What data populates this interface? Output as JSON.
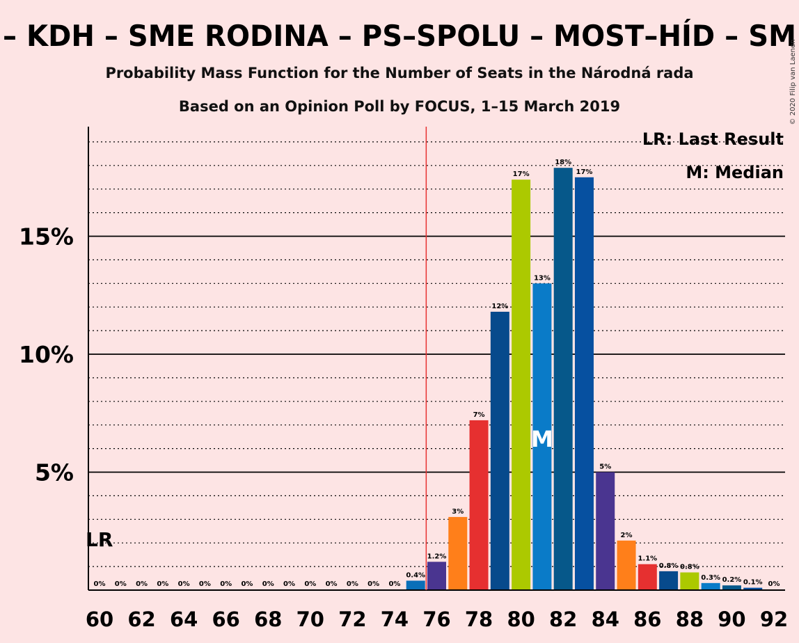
{
  "chart_data": {
    "type": "bar",
    "title": "– KDH – SME RODINA – PS–SPOLU – MOST–HÍD – SM",
    "subtitle1": "Probability Mass Function for the Number of Seats in the Národná rada",
    "subtitle2": "Based on an Opinion Poll by FOCUS, 1–15 March 2019",
    "copyright": "© 2020 Filip van Laenen",
    "x": [
      60,
      61,
      62,
      63,
      64,
      65,
      66,
      67,
      68,
      69,
      70,
      71,
      72,
      73,
      74,
      75,
      76,
      77,
      78,
      79,
      80,
      81,
      82,
      83,
      84,
      85,
      86,
      87,
      88,
      89,
      90,
      91,
      92
    ],
    "values": [
      0,
      0,
      0,
      0,
      0,
      0,
      0,
      0,
      0,
      0,
      0,
      0,
      0,
      0,
      0,
      0.4,
      1.2,
      3.1,
      7.2,
      11.8,
      17.4,
      13.0,
      17.9,
      17.5,
      5.0,
      2.1,
      1.1,
      0.8,
      0.75,
      0.3,
      0.2,
      0.1,
      0
    ],
    "labels": [
      "0%",
      "0%",
      "0%",
      "0%",
      "0%",
      "0%",
      "0%",
      "0%",
      "0%",
      "0%",
      "0%",
      "0%",
      "0%",
      "0%",
      "0%",
      "0.4%",
      "1.2%",
      "3%",
      "7%",
      "12%",
      "17%",
      "13%",
      "18%",
      "17%",
      "5%",
      "2%",
      "1.1%",
      "0.8%",
      "0.8%",
      "0.3%",
      "0.2%",
      "0.1%",
      "0%"
    ],
    "colors": [
      "#1f77b4",
      "#1f77b4",
      "#1f77b4",
      "#1f77b4",
      "#1f77b4",
      "#1f77b4",
      "#1f77b4",
      "#1f77b4",
      "#1f77b4",
      "#1f77b4",
      "#1f77b4",
      "#1f77b4",
      "#1f77b4",
      "#1f77b4",
      "#1f77b4",
      "#0a6fb8",
      "#4a3590",
      "#ff7f1a",
      "#e63030",
      "#074a8c",
      "#acc900",
      "#0a7bc8",
      "#06588a",
      "#0650a0",
      "#4a3590",
      "#ff7f1a",
      "#e63030",
      "#074a8c",
      "#acc900",
      "#0a7bc8",
      "#06588a",
      "#0650a0",
      "#4a3590"
    ],
    "x_ticks": [
      60,
      62,
      64,
      66,
      68,
      70,
      72,
      74,
      76,
      78,
      80,
      82,
      84,
      86,
      88,
      90,
      92
    ],
    "y_ticks": [
      {
        "value": 5,
        "label": "5%"
      },
      {
        "value": 10,
        "label": "10%"
      },
      {
        "value": 15,
        "label": "15%"
      }
    ],
    "ylim": [
      0,
      19.5
    ],
    "grid": "dotted every 1%, solid every 5%",
    "last_result": {
      "x": 60,
      "label": "LR"
    },
    "majority_line_x": 75.5,
    "median": {
      "x": 81,
      "label": "M"
    },
    "legend": [
      "LR: Last Result",
      "M: Median"
    ],
    "legend_position": "top-right"
  }
}
